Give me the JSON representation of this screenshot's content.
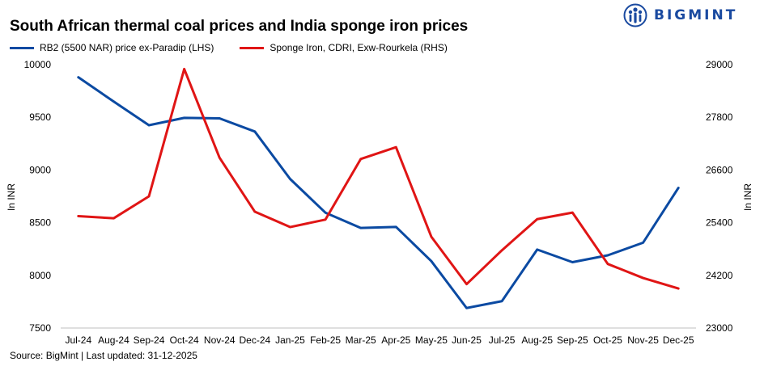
{
  "brand": {
    "name": "BIGMINT",
    "color": "#1a4aa0"
  },
  "source": "Source: BigMint | Last updated: 31-12-2025",
  "chart_data": {
    "type": "line",
    "title": "South African thermal coal prices and India sponge iron prices",
    "categories": [
      "Jul-24",
      "Aug-24",
      "Sep-24",
      "Oct-24",
      "Nov-24",
      "Dec-24",
      "Jan-25",
      "Feb-25",
      "Mar-25",
      "Apr-25",
      "May-25",
      "Jun-25",
      "Jul-25",
      "Aug-25",
      "Sep-25",
      "Oct-25",
      "Nov-25",
      "Dec-25"
    ],
    "ylabel_left": "In INR",
    "ylabel_right": "In INR",
    "ylim_left": [
      7500,
      10000
    ],
    "yticks_left": [
      7500,
      8000,
      8500,
      9000,
      9500,
      10000
    ],
    "ylim_right": [
      23000,
      29000
    ],
    "yticks_right": [
      23000,
      24200,
      25400,
      26600,
      27800,
      29000
    ],
    "grid": false,
    "legend_position": "top-left",
    "series": [
      {
        "name": "RB2 (5500 NAR) price ex-Paradip (LHS)",
        "axis": "left",
        "color": "#0b4aa2",
        "values": [
          9880,
          9650,
          9425,
          9495,
          9490,
          9365,
          8915,
          8595,
          8450,
          8460,
          8135,
          7690,
          7755,
          8245,
          8125,
          8190,
          8310,
          8830
        ]
      },
      {
        "name": "Sponge Iron, CDRI, Exw-Rourkela (RHS)",
        "axis": "right",
        "color": "#e01515",
        "values": [
          25550,
          25500,
          26000,
          28900,
          26880,
          25650,
          25300,
          25470,
          26850,
          27120,
          25080,
          24000,
          24770,
          25480,
          25630,
          24460,
          24140,
          23900
        ]
      }
    ]
  }
}
